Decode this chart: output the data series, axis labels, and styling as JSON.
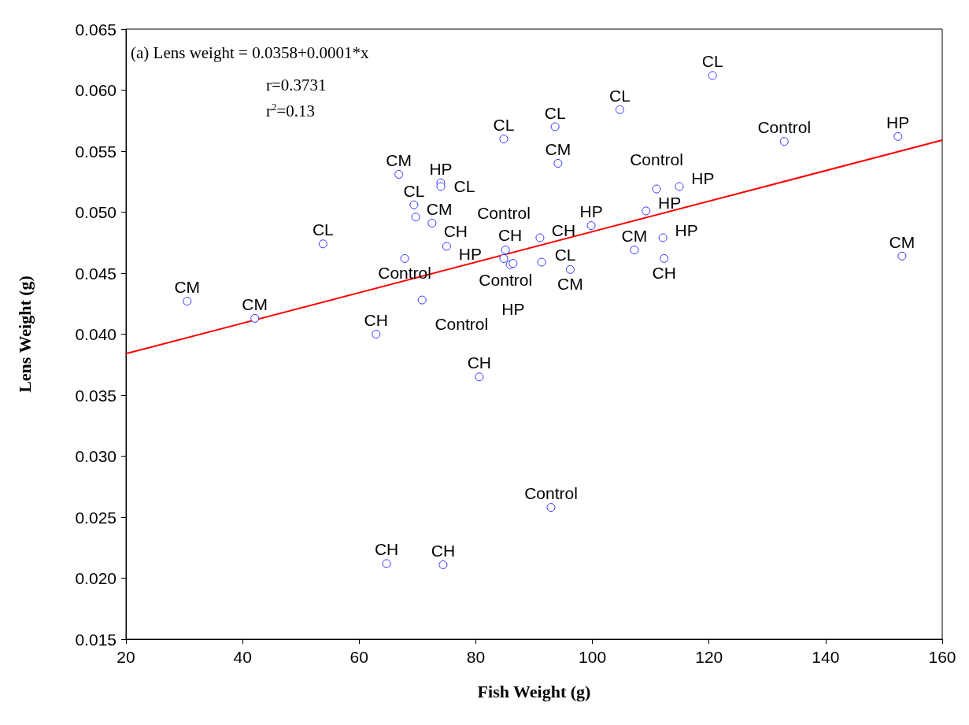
{
  "chart_data": {
    "type": "scatter",
    "xlabel": "Fish Weight (g)",
    "ylabel": "Lens Weight (g)",
    "annotations": [
      "(a) Lens weight = 0.0358+0.0001*x",
      "r=0.3731",
      "r$^{2}$=0.13"
    ],
    "series": [
      {
        "color": "#2f2fff",
        "marker": "circle",
        "x": [
          30.5,
          42.1,
          53.8,
          62.9,
          64.7,
          74.4,
          66.8,
          67.8,
          69.4,
          69.7,
          74.0,
          74.0,
          72.5,
          75.0,
          70.8,
          80.6,
          84.8,
          93.6,
          104.7,
          120.6,
          132.9,
          152.4,
          153.1,
          94.1,
          85.1,
          84.8,
          85.9,
          86.4,
          91.0,
          91.3,
          96.2,
          99.8,
          107.2,
          109.2,
          111.0,
          114.9,
          112.1,
          112.3,
          92.9
        ],
        "values": [
          0.0427,
          0.0413,
          0.0474,
          0.04,
          0.0212,
          0.0211,
          0.0531,
          0.0462,
          0.0506,
          0.0496,
          0.0524,
          0.0521,
          0.0491,
          0.0472,
          0.0428,
          0.0365,
          0.056,
          0.057,
          0.0584,
          0.0612,
          0.0558,
          0.0562,
          0.0464,
          0.054,
          0.0469,
          0.0462,
          0.0457,
          0.0458,
          0.0479,
          0.0459,
          0.0453,
          0.0489,
          0.0469,
          0.0501,
          0.0519,
          0.0521,
          0.0479,
          0.0462,
          0.0258
        ],
        "value_labels": [
          "CM",
          "CM",
          "CL",
          "CH",
          "CH",
          "CH",
          "CM",
          "Control",
          "CL",
          "CM",
          "HP",
          "CL",
          "CH",
          "HP",
          "Control",
          "CH",
          "CL",
          "CL",
          "CL",
          "CL",
          "Control",
          "HP",
          "CM",
          "CM",
          "Control",
          "Control",
          "CH",
          "HP",
          "CH",
          "CL",
          "CM",
          "HP",
          "CM",
          "HP",
          "Control",
          "HP",
          "HP",
          "CH",
          "Control"
        ]
      },
      {
        "type": "line",
        "color": "#ff0000",
        "marker": "none",
        "line_style": "solid",
        "x": [
          20,
          160
        ],
        "values": [
          0.0384,
          0.0559
        ]
      }
    ],
    "xlim": [
      20,
      160
    ],
    "xticks": [
      20,
      40,
      60,
      80,
      100,
      120,
      140,
      160
    ],
    "ylim": [
      0.015,
      0.065
    ],
    "yticks": [
      {
        "value": 0.015,
        "label": "0.015"
      },
      {
        "value": 0.02,
        "label": "0.020"
      },
      {
        "value": 0.025,
        "label": "0.025"
      },
      {
        "value": 0.03,
        "label": "0.030"
      },
      {
        "value": 0.035,
        "label": "0.035"
      },
      {
        "value": 0.04,
        "label": "0.040"
      },
      {
        "value": 0.045,
        "label": "0.045"
      },
      {
        "value": 0.05,
        "label": "0.050"
      },
      {
        "value": 0.055,
        "label": "0.055"
      },
      {
        "value": 0.06,
        "label": "0.060"
      },
      {
        "value": 0.065,
        "label": "0.065"
      }
    ],
    "grid": false
  }
}
